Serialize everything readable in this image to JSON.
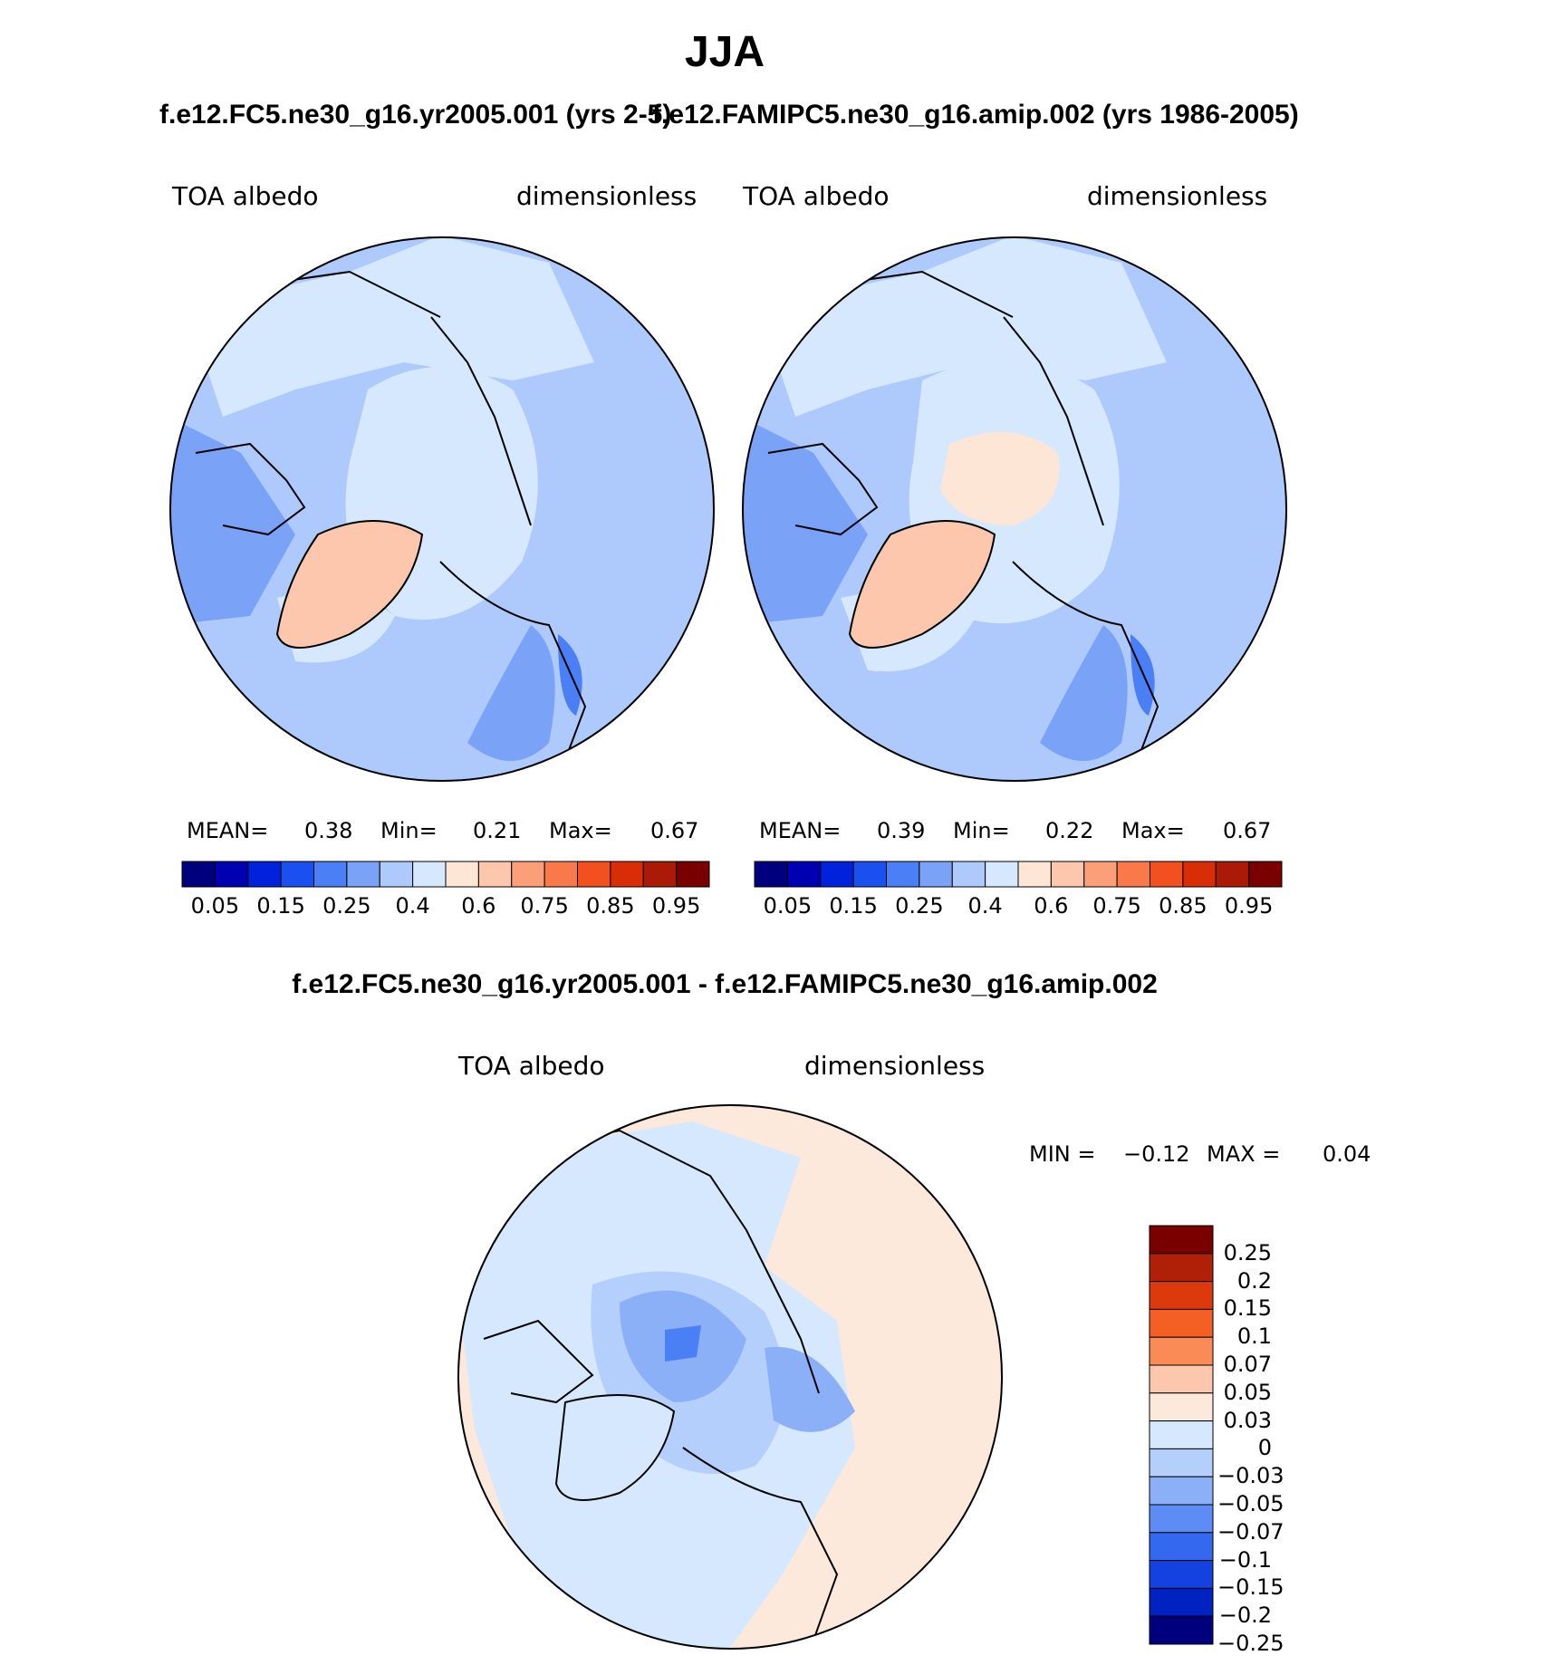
{
  "page": {
    "title": "JJA",
    "test_case": "f.e12.FC5.ne30_g16.yr2005.001 (yrs 2-5)",
    "control_case": "f.e12.FAMIPC5.ne30_g16.amip.002 (yrs 1986-2005)",
    "diff_title": "f.e12.FC5.ne30_g16.yr2005.001 - f.e12.FAMIPC5.ne30_g16.amip.002"
  },
  "panels": [
    {
      "variable": "TOA albedo",
      "units": "dimensionless",
      "stats": {
        "mean_label": "MEAN=",
        "mean": "0.38",
        "min_label": "Min=",
        "min": "0.21",
        "max_label": "Max=",
        "max": "0.67"
      }
    },
    {
      "variable": "TOA albedo",
      "units": "dimensionless",
      "stats": {
        "mean_label": "MEAN=",
        "mean": "0.39",
        "min_label": "Min=",
        "min": "0.22",
        "max_label": "Max=",
        "max": "0.67"
      }
    }
  ],
  "diff_panel": {
    "variable": "TOA albedo",
    "units": "dimensionless",
    "min_label": "MIN =",
    "min": "−0.12",
    "max_label": "MAX =",
    "max": "0.04"
  },
  "colorbar_abs": {
    "colors": [
      "#00007f",
      "#0000b3",
      "#0022dd",
      "#1a4ff0",
      "#4a7ff5",
      "#7aa3f8",
      "#aec9fb",
      "#d6e8fd",
      "#fde6d6",
      "#fcc7ac",
      "#fb9f78",
      "#f9794a",
      "#f2501f",
      "#d92d07",
      "#aa1a06",
      "#7a0000"
    ],
    "tick_labels": [
      "0.05",
      "0.15",
      "0.25",
      "0.4",
      "0.6",
      "0.75",
      "0.85",
      "0.95"
    ]
  },
  "colorbar_diff": {
    "colors": [
      "#7a0000",
      "#b02008",
      "#dc3a0c",
      "#f45f24",
      "#f98c56",
      "#fcc7ac",
      "#fde9dc",
      "#d6e8fd",
      "#b4cffb",
      "#8bb0f8",
      "#5d8cf5",
      "#3468ee",
      "#1442e0",
      "#0022c0",
      "#00007f"
    ],
    "labels": [
      "0.25",
      "0.2",
      "0.15",
      "0.1",
      "0.07",
      "0.05",
      "0.03",
      "0",
      "−0.03",
      "−0.05",
      "−0.07",
      "−0.1",
      "−0.15",
      "−0.2",
      "−0.25"
    ]
  }
}
